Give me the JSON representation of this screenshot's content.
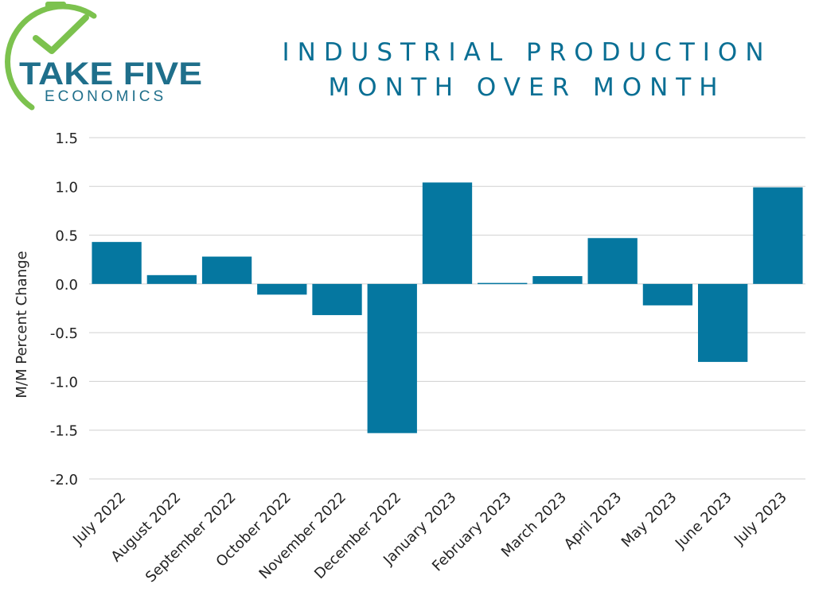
{
  "logo": {
    "line1": "TAKE FIVE",
    "line2": "ECONOMICS",
    "colors": {
      "teal": "#1f6f8b",
      "green": "#7cc24e"
    }
  },
  "title": {
    "line1": "INDUSTRIAL PRODUCTION",
    "line2": "MONTH OVER MONTH"
  },
  "chart_data": {
    "type": "bar",
    "title": "INDUSTRIAL PRODUCTION MONTH OVER MONTH",
    "xlabel": "",
    "ylabel": "M/M Percent Change",
    "ylim": [
      -2.0,
      1.5
    ],
    "yticks": [
      "1.5",
      "1.0",
      "0.5",
      "0.0",
      "-0.5",
      "-1.0",
      "-1.5",
      "-2.0"
    ],
    "ytick_values": [
      1.5,
      1.0,
      0.5,
      0.0,
      -0.5,
      -1.0,
      -1.5,
      -2.0
    ],
    "grid": true,
    "bar_color": "#0577a0",
    "categories": [
      "July 2022",
      "August 2022",
      "September 2022",
      "October 2022",
      "November 2022",
      "December 2022",
      "January 2023",
      "February 2023",
      "March 2023",
      "April 2023",
      "May 2023",
      "June 2023",
      "July 2023"
    ],
    "values": [
      0.43,
      0.09,
      0.28,
      -0.11,
      -0.32,
      -1.53,
      1.04,
      0.01,
      0.08,
      0.47,
      -0.22,
      -0.8,
      0.99
    ]
  }
}
